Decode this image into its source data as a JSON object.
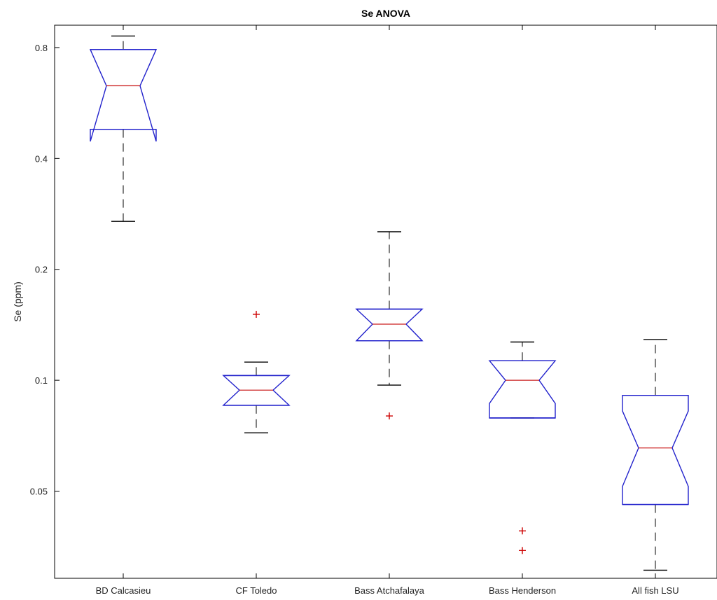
{
  "chart_data": {
    "type": "box",
    "title": "Se ANOVA",
    "xlabel": "",
    "ylabel": "Se (ppm)",
    "y_scale": "log",
    "ylim": [
      0.029,
      0.92
    ],
    "yticks": [
      0.05,
      0.1,
      0.2,
      0.4,
      0.8
    ],
    "ytick_labels": [
      "0.05",
      "0.1",
      "0.2",
      "0.4",
      "0.8"
    ],
    "notched": true,
    "grid": false,
    "colors": {
      "box": "#2222cc",
      "median": "#cc2222",
      "whisker": "#000000",
      "outlier": "#cc0000"
    },
    "categories": [
      "BD Calcasieu",
      "CF Toledo",
      "Bass Atchafalaya",
      "Bass Henderson",
      "All fish LSU"
    ],
    "boxes": [
      {
        "name": "BD Calcasieu",
        "q1": 0.48,
        "median": 0.63,
        "q3": 0.79,
        "notch_low": 0.445,
        "notch_high": 0.79,
        "whisker_low": 0.27,
        "whisker_high": 0.86,
        "outliers": []
      },
      {
        "name": "CF Toledo",
        "q1": 0.0855,
        "median": 0.094,
        "q3": 0.103,
        "notch_low": 0.0855,
        "notch_high": 0.103,
        "whisker_low": 0.072,
        "whisker_high": 0.112,
        "outliers": [
          0.151
        ]
      },
      {
        "name": "Bass Atchafalaya",
        "q1": 0.128,
        "median": 0.142,
        "q3": 0.156,
        "notch_low": 0.128,
        "notch_high": 0.156,
        "whisker_low": 0.097,
        "whisker_high": 0.253,
        "outliers": [
          0.08
        ]
      },
      {
        "name": "Bass Henderson",
        "q1": 0.079,
        "median": 0.1,
        "q3": 0.113,
        "notch_low": 0.0865,
        "notch_high": 0.113,
        "whisker_low": 0.079,
        "whisker_high": 0.127,
        "outliers": [
          0.039,
          0.0345
        ]
      },
      {
        "name": "All fish LSU",
        "q1": 0.046,
        "median": 0.0655,
        "q3": 0.091,
        "notch_low": 0.0515,
        "notch_high": 0.0825,
        "whisker_low": 0.0305,
        "whisker_high": 0.129,
        "outliers": []
      }
    ]
  }
}
